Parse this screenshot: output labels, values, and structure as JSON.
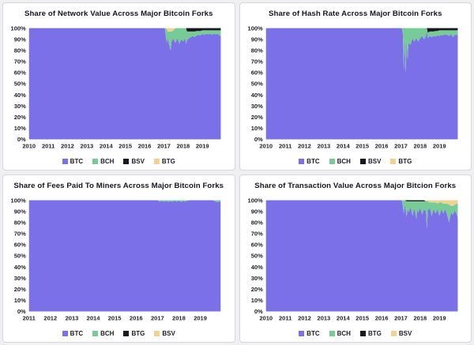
{
  "page": {
    "background": "#f0f0f2",
    "panel_background": "#ffffff",
    "panel_border": "#d6d6db",
    "colors": {
      "btc_purple": "#7b70e8",
      "bch_green": "#76cb96",
      "fork_black": "#17171f",
      "fork_yellow": "#f2d292",
      "text": "#15151e"
    }
  },
  "chart_data": [
    {
      "type": "area",
      "stacked_percent": true,
      "title": "Share of Network Value Across Major Bitcoin Forks",
      "legend_position": "bottom",
      "grid": false,
      "x_domain": [
        2010,
        2020
      ],
      "x_labels": [
        "2010",
        "2011",
        "2012",
        "2013",
        "2014",
        "2015",
        "2016",
        "2017",
        "2018",
        "2019"
      ],
      "y_ticks": [
        "100%",
        "90%",
        "80%",
        "70%",
        "60%",
        "50%",
        "40%",
        "30%",
        "20%",
        "10%",
        "0%"
      ],
      "x": [
        2010,
        2017.05,
        2017.1,
        2017.15,
        2017.2,
        2017.25,
        2017.3,
        2017.35,
        2017.4,
        2017.5,
        2017.55,
        2017.6,
        2017.7,
        2017.8,
        2017.9,
        2018.0,
        2018.1,
        2018.15,
        2018.2,
        2018.3,
        2018.4,
        2018.5,
        2018.6,
        2018.7,
        2018.8,
        2018.9,
        2019.0,
        2019.1,
        2019.2,
        2019.3,
        2019.4,
        2019.5,
        2019.6,
        2019.7,
        2019.8,
        2019.9,
        2019.95
      ],
      "series": [
        {
          "name": "BTC",
          "color": "#7b70e8",
          "values": [
            100,
            100,
            92,
            87,
            91,
            87,
            83,
            80,
            88,
            91,
            88,
            87,
            91,
            86,
            90,
            88,
            91,
            86,
            89,
            91,
            92,
            93,
            92,
            93.5,
            94,
            93.5,
            95,
            94,
            95,
            94.5,
            95,
            94,
            95,
            94.5,
            95,
            93,
            94
          ]
        },
        {
          "name": "BCH",
          "color": "#76cb96",
          "values": [
            0,
            0,
            8,
            12,
            6,
            10,
            14,
            17,
            9,
            7,
            11,
            13,
            9,
            14,
            10,
            12,
            9,
            14,
            8,
            6,
            5,
            4,
            5,
            4,
            3.5,
            4,
            3,
            4,
            3,
            3.5,
            3,
            4,
            3,
            3.5,
            3,
            5,
            4
          ]
        },
        {
          "name": "BSV",
          "color": "#17171f",
          "values": [
            0,
            0,
            0,
            0,
            0,
            0,
            0,
            0,
            0,
            0,
            0,
            0,
            0,
            0,
            0,
            0,
            0,
            0,
            3,
            3,
            3,
            3,
            3,
            2.5,
            2.5,
            2.5,
            2,
            2,
            2,
            2,
            2,
            2,
            2,
            2,
            2,
            2,
            2
          ]
        },
        {
          "name": "BTG",
          "color": "#f2d292",
          "values": [
            0,
            0,
            0,
            1,
            3,
            3,
            3,
            3,
            3,
            2,
            1,
            0,
            0,
            0,
            0,
            0,
            0,
            0,
            0,
            0,
            0,
            0,
            0,
            0,
            0,
            0,
            0,
            0,
            0,
            0,
            0,
            0,
            0,
            0,
            0,
            0,
            0
          ]
        }
      ]
    },
    {
      "type": "area",
      "stacked_percent": true,
      "title": "Share of Hash Rate Across Major Bitcoin Forks",
      "legend_position": "bottom",
      "grid": false,
      "x_domain": [
        2010,
        2020
      ],
      "x_labels": [
        "2010",
        "2011",
        "2012",
        "2013",
        "2014",
        "2015",
        "2016",
        "2017",
        "2018",
        "2019"
      ],
      "y_ticks": [
        "100%",
        "90%",
        "80%",
        "70%",
        "60%",
        "50%",
        "40%",
        "30%",
        "20%",
        "10%",
        "0%"
      ],
      "x": [
        2010,
        2017.05,
        2017.1,
        2017.15,
        2017.2,
        2017.25,
        2017.3,
        2017.35,
        2017.4,
        2017.5,
        2017.6,
        2017.7,
        2017.8,
        2017.9,
        2018.0,
        2018.1,
        2018.2,
        2018.3,
        2018.35,
        2018.4,
        2018.5,
        2018.6,
        2018.7,
        2018.8,
        2018.9,
        2019.0,
        2019.1,
        2019.2,
        2019.3,
        2019.4,
        2019.5,
        2019.6,
        2019.7,
        2019.8,
        2019.9,
        2019.95
      ],
      "series": [
        {
          "name": "BTC",
          "color": "#7b70e8",
          "values": [
            100,
            100,
            95,
            62,
            92,
            60,
            90,
            72,
            87,
            85,
            91,
            88,
            91,
            88,
            91,
            93,
            90,
            93,
            98,
            91,
            93,
            92,
            93,
            92.5,
            93.5,
            93,
            94,
            93.5,
            94.5,
            94,
            93,
            94.5,
            92,
            94,
            94,
            95
          ]
        },
        {
          "name": "BCH",
          "color": "#76cb96",
          "values": [
            0,
            0,
            5,
            38,
            8,
            40,
            10,
            28,
            13,
            15,
            9,
            12,
            9,
            12,
            9,
            7,
            10,
            7,
            2,
            5,
            4,
            5,
            4,
            5,
            4,
            5,
            4,
            4.5,
            3.5,
            4,
            5,
            3.5,
            6,
            4,
            4,
            3
          ]
        },
        {
          "name": "BSV",
          "color": "#17171f",
          "values": [
            0,
            0,
            0,
            0,
            0,
            0,
            0,
            0,
            0,
            0,
            0,
            0,
            0,
            0,
            0,
            0,
            0,
            0,
            0,
            4,
            3,
            3,
            3,
            2.5,
            2.5,
            2,
            2,
            2,
            2,
            2,
            2,
            2,
            2,
            2,
            2,
            2
          ]
        },
        {
          "name": "BTG",
          "color": "#f2d292",
          "values": [
            0,
            0,
            0,
            0,
            0,
            0,
            0,
            0,
            0,
            0,
            0,
            0,
            0,
            0,
            0,
            0,
            0,
            0,
            0,
            0,
            0,
            0,
            0,
            0,
            0,
            0,
            0,
            0,
            0,
            0,
            0,
            0,
            0,
            0,
            0,
            0
          ]
        }
      ]
    },
    {
      "type": "area",
      "stacked_percent": true,
      "title": "Share of Fees Paid To Miners Across Major Bitcoin Forks",
      "legend_position": "bottom",
      "grid": false,
      "x_domain": [
        2011,
        2020
      ],
      "x_labels": [
        "2011",
        "2012",
        "2013",
        "2014",
        "2015",
        "2016",
        "2017",
        "2018",
        "2019"
      ],
      "y_ticks": [
        "100%",
        "90%",
        "80%",
        "70%",
        "60%",
        "50%",
        "40%",
        "30%",
        "20%",
        "10%",
        "0%"
      ],
      "x": [
        2011,
        2017.0,
        2017.1,
        2017.2,
        2017.3,
        2017.4,
        2017.5,
        2017.6,
        2017.7,
        2017.8,
        2017.9,
        2018.0,
        2018.1,
        2018.2,
        2018.3,
        2018.4,
        2018.5,
        2019.6,
        2019.7,
        2019.8,
        2019.9,
        2019.95
      ],
      "series": [
        {
          "name": "BTC",
          "color": "#7b70e8",
          "values": [
            100,
            100,
            98.8,
            99.5,
            98.6,
            99.4,
            98.5,
            99.2,
            98.8,
            99.5,
            98.7,
            99.4,
            98.6,
            99.3,
            98.8,
            99.6,
            100,
            100,
            98.8,
            98.4,
            98.8,
            98.6
          ]
        },
        {
          "name": "BCH",
          "color": "#76cb96",
          "values": [
            0,
            0,
            1.2,
            0.5,
            1.4,
            0.6,
            1.5,
            0.8,
            1.2,
            0.5,
            1.3,
            0.6,
            1.4,
            0.7,
            1.2,
            0.4,
            0,
            0,
            1.2,
            1.6,
            1.2,
            1.4
          ]
        },
        {
          "name": "BTG",
          "color": "#17171f",
          "values": [
            0,
            0,
            0,
            0,
            0,
            0,
            0,
            0,
            0,
            0,
            0,
            0,
            0,
            0,
            0,
            0,
            0,
            0,
            0,
            0,
            0,
            0
          ]
        },
        {
          "name": "BSV",
          "color": "#f2d292",
          "values": [
            0,
            0,
            0,
            0,
            0,
            0,
            0,
            0,
            0,
            0,
            0,
            0,
            0,
            0,
            0,
            0,
            0,
            0,
            0,
            0,
            0,
            0
          ]
        }
      ]
    },
    {
      "type": "area",
      "stacked_percent": true,
      "title": "Share of Transaction Value Across Major Bitcion Forks",
      "legend_position": "bottom",
      "grid": false,
      "x_domain": [
        2010,
        2020
      ],
      "x_labels": [
        "2010",
        "2011",
        "2012",
        "2013",
        "2014",
        "2015",
        "2016",
        "2017",
        "2018",
        "2019"
      ],
      "y_ticks": [
        "100%",
        "90%",
        "80%",
        "70%",
        "60%",
        "50%",
        "40%",
        "30%",
        "20%",
        "10%",
        "0%"
      ],
      "x": [
        2010,
        2017.05,
        2017.1,
        2017.15,
        2017.2,
        2017.3,
        2017.35,
        2017.4,
        2017.5,
        2017.6,
        2017.7,
        2017.8,
        2017.85,
        2017.9,
        2018.0,
        2018.1,
        2018.2,
        2018.3,
        2018.35,
        2018.4,
        2018.5,
        2018.6,
        2018.7,
        2018.8,
        2018.9,
        2019.0,
        2019.1,
        2019.2,
        2019.3,
        2019.4,
        2019.5,
        2019.6,
        2019.7,
        2019.8,
        2019.9,
        2019.95
      ],
      "series": [
        {
          "name": "BTC",
          "color": "#7b70e8",
          "values": [
            100,
            100,
            94,
            88,
            96,
            85,
            93,
            89,
            94,
            86,
            93,
            83,
            92,
            89,
            93,
            87,
            92,
            90,
            74,
            91,
            93,
            86,
            92,
            88,
            92,
            86,
            92,
            88,
            92,
            87,
            80,
            89,
            87,
            91,
            87,
            85
          ]
        },
        {
          "name": "BCH",
          "color": "#76cb96",
          "values": [
            0,
            0,
            6,
            12,
            4,
            14,
            6,
            10,
            5,
            13,
            6,
            16,
            7,
            10,
            6,
            12,
            7,
            9,
            25,
            8,
            5,
            12,
            6,
            10,
            5,
            12,
            6,
            9,
            5,
            10,
            16,
            6,
            8,
            5,
            10,
            12
          ]
        },
        {
          "name": "BTG",
          "color": "#17171f",
          "values": [
            0,
            0,
            0,
            0,
            0,
            1,
            1,
            1,
            1,
            1,
            1,
            1,
            1,
            1,
            1,
            1,
            1,
            0,
            0,
            0,
            0,
            0,
            0,
            0,
            0,
            0,
            0,
            0,
            0,
            0,
            0,
            0,
            0,
            0,
            0,
            0
          ]
        },
        {
          "name": "BSV",
          "color": "#f2d292",
          "values": [
            0,
            0,
            0,
            0,
            0,
            0,
            0,
            0,
            0,
            0,
            0,
            0,
            0,
            0,
            0,
            0,
            0,
            1,
            1,
            1,
            2,
            2,
            2,
            2,
            3,
            2,
            2,
            3,
            3,
            3,
            4,
            5,
            5,
            4,
            3,
            3
          ]
        }
      ]
    }
  ]
}
